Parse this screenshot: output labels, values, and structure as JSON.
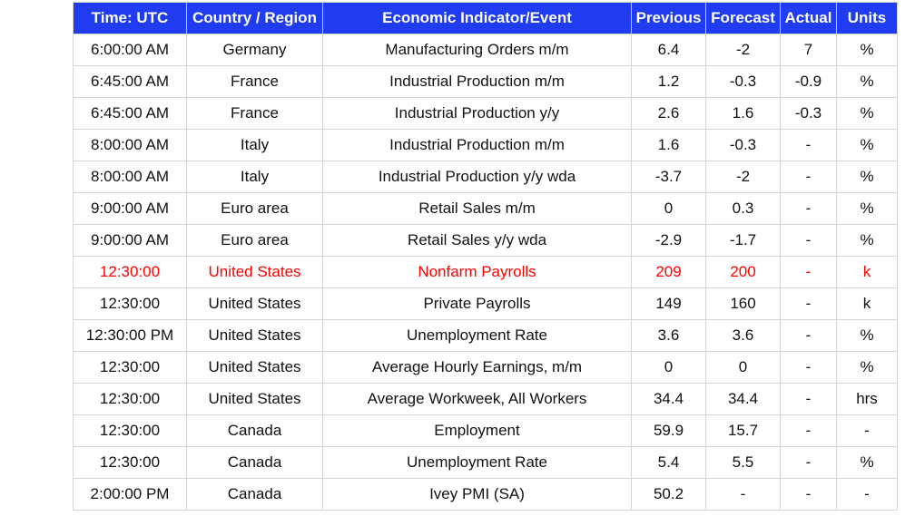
{
  "table": {
    "header": [
      "Time: UTC",
      "Country / Region",
      "Economic Indicator/Event",
      "Previous",
      "Forecast",
      "Actual",
      "Units"
    ],
    "header_color": "#1f3cf0",
    "rows": [
      {
        "cells": [
          "6:00:00 AM",
          "Germany",
          "Manufacturing Orders m/m",
          "6.4",
          "-2",
          "7",
          "%"
        ]
      },
      {
        "cells": [
          "6:45:00 AM",
          "France",
          "Industrial Production m/m",
          "1.2",
          "-0.3",
          "-0.9",
          "%"
        ]
      },
      {
        "cells": [
          "6:45:00 AM",
          "France",
          "Industrial Production y/y",
          "2.6",
          "1.6",
          "-0.3",
          "%"
        ]
      },
      {
        "cells": [
          "8:00:00 AM",
          "Italy",
          "Industrial Production m/m",
          "1.6",
          "-0.3",
          "-",
          "%"
        ]
      },
      {
        "cells": [
          "8:00:00 AM",
          "Italy",
          "Industrial Production y/y wda",
          "-3.7",
          "-2",
          "-",
          "%"
        ]
      },
      {
        "cells": [
          "9:00:00 AM",
          "Euro area",
          "Retail Sales m/m",
          "0",
          "0.3",
          "-",
          "%"
        ]
      },
      {
        "cells": [
          "9:00:00 AM",
          "Euro area",
          "Retail Sales y/y wda",
          "-2.9",
          "-1.7",
          "-",
          "%"
        ]
      },
      {
        "cells": [
          "12:30:00",
          "United States",
          "Nonfarm Payrolls",
          "209",
          "200",
          "-",
          "k"
        ],
        "color": "#ff0000"
      },
      {
        "cells": [
          "12:30:00",
          "United States",
          "Private Payrolls",
          "149",
          "160",
          "-",
          "k"
        ]
      },
      {
        "cells": [
          "12:30:00 PM",
          "United States",
          "Unemployment Rate",
          "3.6",
          "3.6",
          "-",
          "%"
        ]
      },
      {
        "cells": [
          "12:30:00",
          "United States",
          "Average Hourly Earnings, m/m",
          "0",
          "0",
          "-",
          "%"
        ]
      },
      {
        "cells": [
          "12:30:00",
          "United States",
          "Average Workweek, All Workers",
          "34.4",
          "34.4",
          "-",
          "hrs"
        ]
      },
      {
        "cells": [
          "12:30:00",
          "Canada",
          "Employment",
          "59.9",
          "15.7",
          "-",
          "-"
        ]
      },
      {
        "cells": [
          "12:30:00",
          "Canada",
          "Unemployment Rate",
          "5.4",
          "5.5",
          "-",
          "%"
        ]
      },
      {
        "cells": [
          "2:00:00 PM",
          "Canada",
          "Ivey PMI (SA)",
          "50.2",
          "-",
          "-",
          "-"
        ]
      }
    ]
  }
}
